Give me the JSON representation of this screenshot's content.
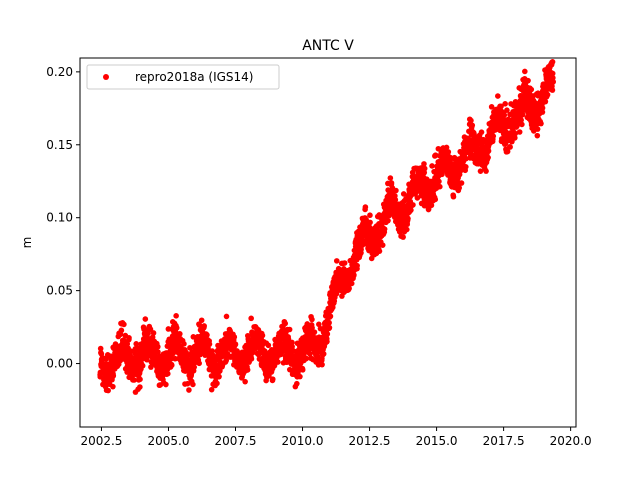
{
  "chart_data": {
    "type": "scatter",
    "title": "ANTC V",
    "xlabel": "",
    "ylabel": "m",
    "xlim": [
      2001.7,
      2020.2
    ],
    "ylim": [
      -0.0435,
      0.2095
    ],
    "xticks": [
      2002.5,
      2005.0,
      2007.5,
      2010.0,
      2012.5,
      2015.0,
      2017.5,
      2020.0
    ],
    "xtick_labels": [
      "2002.5",
      "2005.0",
      "2007.5",
      "2010.0",
      "2012.5",
      "2015.0",
      "2017.5",
      "2020.0"
    ],
    "yticks": [
      0.0,
      0.05,
      0.1,
      0.15,
      0.2
    ],
    "ytick_labels": [
      "0.00",
      "0.05",
      "0.10",
      "0.15",
      "0.20"
    ],
    "grid": false,
    "legend": {
      "placement": "top-left",
      "entries": [
        "repro2018a (IGS14)"
      ]
    },
    "series": [
      {
        "name": "repro2018a (IGS14)",
        "color": "#ff0000",
        "marker": "circle",
        "x_range": [
          2002.45,
          2019.35
        ],
        "trend_points": {
          "x": [
            2002.45,
            2003.5,
            2005.0,
            2007.5,
            2009.0,
            2010.5,
            2011.0,
            2011.5,
            2012.0,
            2012.5,
            2013.5,
            2015.0,
            2016.5,
            2017.5,
            2018.5,
            2019.35
          ],
          "y": [
            0.0,
            0.004,
            0.006,
            0.007,
            0.008,
            0.009,
            0.035,
            0.058,
            0.075,
            0.088,
            0.105,
            0.128,
            0.148,
            0.163,
            0.178,
            0.19
          ]
        },
        "noise_sd": 0.006,
        "annual_amplitude": 0.009
      }
    ]
  }
}
